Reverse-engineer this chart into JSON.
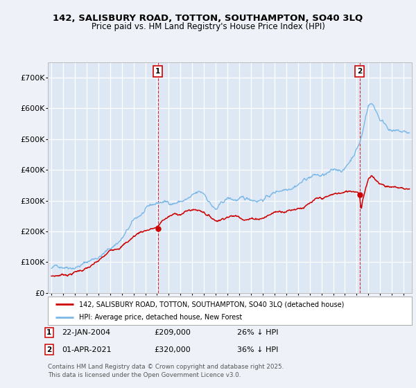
{
  "title_line1": "142, SALISBURY ROAD, TOTTON, SOUTHAMPTON, SO40 3LQ",
  "title_line2": "Price paid vs. HM Land Registry's House Price Index (HPI)",
  "ylim": [
    0,
    750000
  ],
  "yticks": [
    0,
    100000,
    200000,
    300000,
    400000,
    500000,
    600000,
    700000
  ],
  "ytick_labels": [
    "£0",
    "£100K",
    "£200K",
    "£300K",
    "£400K",
    "£500K",
    "£600K",
    "£700K"
  ],
  "background_color": "#eef2f8",
  "plot_bg_color": "#dde8f4",
  "grid_color": "#ffffff",
  "hpi_color": "#7ab8e8",
  "price_color": "#cc0000",
  "marker1_x": 2004.07,
  "marker1_y": 209000,
  "marker2_x": 2021.25,
  "marker2_y": 320000,
  "legend_label_price": "142, SALISBURY ROAD, TOTTON, SOUTHAMPTON, SO40 3LQ (detached house)",
  "legend_label_hpi": "HPI: Average price, detached house, New Forest",
  "footer": "Contains HM Land Registry data © Crown copyright and database right 2025.\nThis data is licensed under the Open Government Licence v3.0.",
  "xlim_start": 1994.7,
  "xlim_end": 2025.7
}
